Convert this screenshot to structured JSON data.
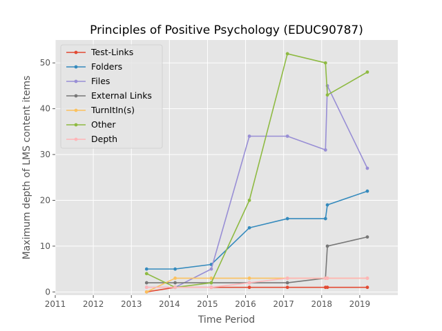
{
  "chart_data": {
    "type": "line",
    "title": "Principles of Positive Psychology (EDUC90787)",
    "xlabel": "Time Period",
    "ylabel": "Maximum depth of LMS content items",
    "xlim": [
      2011,
      2020.0
    ],
    "ylim": [
      -0.7,
      55
    ],
    "xticks": [
      2011,
      2012,
      2013,
      2014,
      2015,
      2016,
      2017,
      2018,
      2019
    ],
    "yticks": [
      0,
      10,
      20,
      30,
      40,
      50
    ],
    "grid": true,
    "legend_position": "top-left",
    "series": [
      {
        "name": "Test-Links",
        "color": "#E24A33",
        "x": [
          2013.4,
          2014.15,
          2015.1,
          2016.1,
          2017.1,
          2018.1,
          2018.15,
          2019.2
        ],
        "y": [
          0,
          1,
          1,
          1,
          1,
          1,
          1,
          1
        ]
      },
      {
        "name": "Folders",
        "color": "#348ABD",
        "x": [
          2013.4,
          2014.15,
          2015.1,
          2016.1,
          2017.1,
          2018.1,
          2018.15,
          2019.2
        ],
        "y": [
          5,
          5,
          6,
          14,
          16,
          16,
          19,
          22
        ]
      },
      {
        "name": "Files",
        "color": "#988ED5",
        "x": [
          2013.4,
          2014.15,
          2015.1,
          2016.1,
          2017.1,
          2018.1,
          2018.15,
          2019.2
        ],
        "y": [
          1,
          1,
          5,
          34,
          34,
          31,
          45,
          27
        ]
      },
      {
        "name": "External Links",
        "color": "#777777",
        "x": [
          2013.4,
          2014.15,
          2015.1,
          2016.1,
          2017.1,
          2018.1,
          2018.15,
          2019.2
        ],
        "y": [
          2,
          2,
          2,
          2,
          2,
          3,
          10,
          12
        ]
      },
      {
        "name": "TurnItIn(s)",
        "color": "#FBC15E",
        "x": [
          2013.4,
          2014.15,
          2015.1,
          2016.1,
          2017.1,
          2018.1,
          2018.15,
          2019.2
        ],
        "y": [
          0,
          3,
          3,
          3,
          3,
          3,
          3,
          3
        ]
      },
      {
        "name": "Other",
        "color": "#8EBA42",
        "x": [
          2013.4,
          2014.15,
          2015.1,
          2016.1,
          2017.1,
          2018.1,
          2018.15,
          2019.2
        ],
        "y": [
          4,
          1,
          2,
          20,
          52,
          50,
          43,
          48
        ]
      },
      {
        "name": "Depth",
        "color": "#FFB5B8",
        "x": [
          2013.4,
          2014.15,
          2015.1,
          2016.1,
          2017.1,
          2018.1,
          2018.15,
          2019.2
        ],
        "y": [
          1,
          1,
          1,
          2,
          3,
          3,
          3,
          3
        ]
      }
    ]
  }
}
